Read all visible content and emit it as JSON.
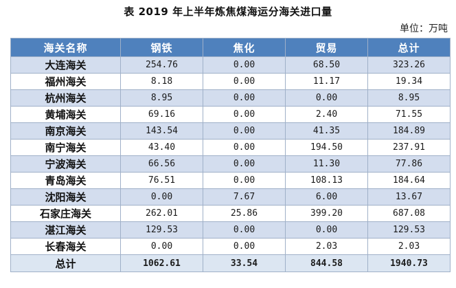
{
  "title": "表 2019 年上半年炼焦煤海运分海关进口量",
  "unit": "单位：万吨",
  "table": {
    "headers": [
      "海关名称",
      "钢铁",
      "焦化",
      "贸易",
      "总计"
    ],
    "rows": [
      [
        "大连海关",
        "254.76",
        "0.00",
        "68.50",
        "323.26"
      ],
      [
        "福州海关",
        "8.18",
        "0.00",
        "11.17",
        "19.34"
      ],
      [
        "杭州海关",
        "8.95",
        "0.00",
        "0.00",
        "8.95"
      ],
      [
        "黄埔海关",
        "69.16",
        "0.00",
        "2.40",
        "71.55"
      ],
      [
        "南京海关",
        "143.54",
        "0.00",
        "41.35",
        "184.89"
      ],
      [
        "南宁海关",
        "43.40",
        "0.00",
        "194.50",
        "237.91"
      ],
      [
        "宁波海关",
        "66.56",
        "0.00",
        "11.30",
        "77.86"
      ],
      [
        "青岛海关",
        "76.51",
        "0.00",
        "108.13",
        "184.64"
      ],
      [
        "沈阳海关",
        "0.00",
        "7.67",
        "6.00",
        "13.67"
      ],
      [
        "石家庄海关",
        "262.01",
        "25.86",
        "399.20",
        "687.08"
      ],
      [
        "湛江海关",
        "129.53",
        "0.00",
        "0.00",
        "129.53"
      ],
      [
        "长春海关",
        "0.00",
        "0.00",
        "2.03",
        "2.03"
      ]
    ],
    "total": [
      "总计",
      "1062.61",
      "33.54",
      "844.58",
      "1940.73"
    ]
  }
}
